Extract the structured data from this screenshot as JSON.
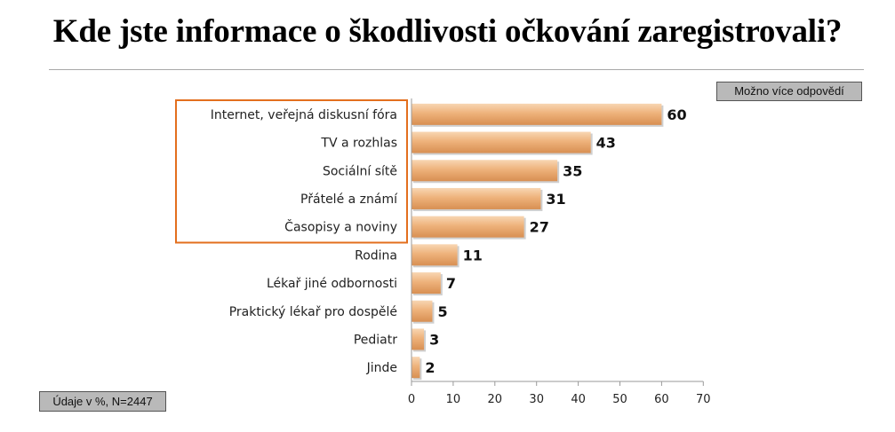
{
  "title": "Kde jste informace o škodlivosti očkování zaregistrovali?",
  "note_top": "Možno více odpovědí",
  "note_bottom": "Údaje v %, N=2447",
  "colors": {
    "bar_light": "#f8d6b3",
    "bar_mid": "#eeb27b",
    "bar_dark": "#d88f52",
    "highlight_border": "#e36f1e",
    "axis": "#9a9a9a"
  },
  "chart_data": {
    "type": "bar",
    "orientation": "horizontal",
    "categories": [
      "Internet, veřejná diskusní fóra",
      "TV a rozhlas",
      "Sociální sítě",
      "Přátelé a známí",
      "Časopisy a noviny",
      "Rodina",
      "Lékař jiné odbornosti",
      "Praktický lékař pro dospělé",
      "Pediatr",
      "Jinde"
    ],
    "values": [
      60,
      43,
      35,
      31,
      27,
      11,
      7,
      5,
      3,
      2
    ],
    "xlim": [
      0,
      70
    ],
    "xticks": [
      0,
      10,
      20,
      30,
      40,
      50,
      60,
      70
    ],
    "grid": false,
    "legend": "none",
    "highlighted_categories": [
      "Internet, veřejná diskusní fóra",
      "TV a rozhlas",
      "Sociální sítě",
      "Přátelé a známí",
      "Časopisy a noviny"
    ]
  }
}
